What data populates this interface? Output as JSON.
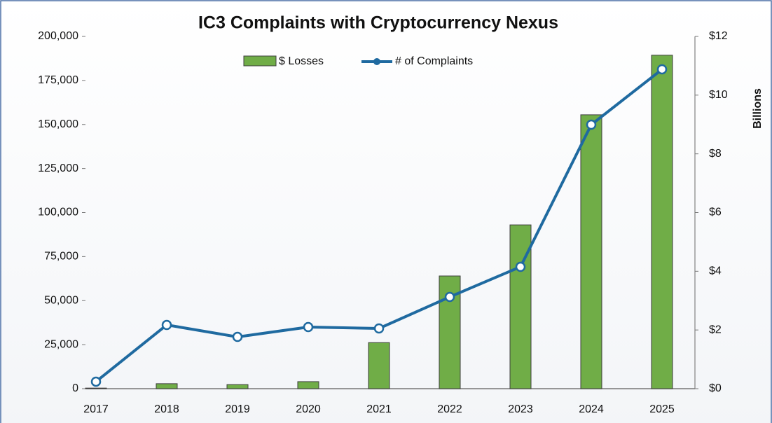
{
  "chart_data": {
    "type": "combo",
    "title": "IC3 Complaints with Cryptocurrency Nexus",
    "y2_label": "Billions",
    "categories": [
      "2017",
      "2018",
      "2019",
      "2020",
      "2021",
      "2022",
      "2023",
      "2024",
      "2025"
    ],
    "series": [
      {
        "name": "$ Losses",
        "type": "bar",
        "axis": "y2",
        "color": "#70ad47",
        "values": [
          0.02,
          0.17,
          0.14,
          0.24,
          1.57,
          3.84,
          5.58,
          9.33,
          11.36
        ]
      },
      {
        "name": "# of Complaints",
        "type": "line",
        "color": "#1f6aa0",
        "values": [
          4000,
          36200,
          29400,
          35000,
          34200,
          52100,
          69200,
          149900,
          181300
        ]
      }
    ],
    "ylim": [
      0,
      200000
    ],
    "yticks": [
      0,
      {
        "value": 25000,
        "label": "25,000"
      },
      {
        "value": 50000,
        "label": "50,000"
      },
      {
        "value": 75000,
        "label": "75,000"
      },
      {
        "value": 100000,
        "label": "100,000"
      },
      {
        "value": 125000,
        "label": "125,000"
      },
      {
        "value": 150000,
        "label": "150,000"
      },
      {
        "value": 175000,
        "label": "175,000"
      },
      {
        "value": 200000,
        "label": "200,000"
      }
    ],
    "y2lim": [
      0,
      12
    ],
    "y2ticks": [
      {
        "value": 0,
        "label": "$0"
      },
      {
        "value": 2,
        "label": "$2"
      },
      {
        "value": 4,
        "label": "$4"
      },
      {
        "value": 6,
        "label": "$6"
      },
      {
        "value": 8,
        "label": "$8"
      },
      {
        "value": 10,
        "label": "$10"
      },
      {
        "value": 12,
        "label": "$12"
      }
    ],
    "legend": "top"
  }
}
